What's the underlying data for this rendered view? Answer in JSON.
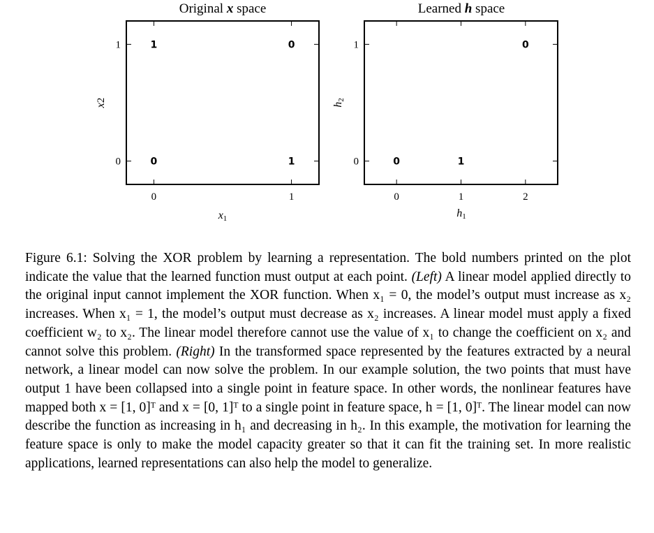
{
  "chart_data": [
    {
      "type": "scatter",
      "title": "Original x space",
      "title_pre": "Original ",
      "title_var": "x",
      "title_post": " space",
      "xlabel": "x1",
      "ylabel": "x2",
      "xlim": [
        -0.2,
        1.2
      ],
      "ylim": [
        -0.2,
        1.2
      ],
      "xticks": [
        0,
        1
      ],
      "yticks": [
        0,
        1
      ],
      "points": [
        {
          "x": 0,
          "y": 1,
          "label": "1"
        },
        {
          "x": 1,
          "y": 1,
          "label": "0"
        },
        {
          "x": 0,
          "y": 0,
          "label": "0"
        },
        {
          "x": 1,
          "y": 0,
          "label": "1"
        }
      ]
    },
    {
      "type": "scatter",
      "title": "Learned h space",
      "title_pre": "Learned ",
      "title_var": "h",
      "title_post": " space",
      "xlabel": "h1",
      "ylabel": "h2",
      "xlim": [
        -0.5,
        2.5
      ],
      "ylim": [
        -0.2,
        1.2
      ],
      "xticks": [
        0,
        1,
        2
      ],
      "yticks": [
        0,
        1
      ],
      "points": [
        {
          "x": 2,
          "y": 1,
          "label": "0"
        },
        {
          "x": 0,
          "y": 0,
          "label": "0"
        },
        {
          "x": 1,
          "y": 0,
          "label": "1"
        }
      ]
    }
  ],
  "caption": {
    "lead": "Figure 6.1: Solving the XOR problem by learning a representation. The bold numbers printed on the plot indicate the value that the learned function must output at each point. ",
    "left_tag": "(Left)",
    "after_left": " A linear model applied directly to the original input cannot implement the XOR function. When x₁ = 0, the model’s output must increase as x₂ increases. When x₁ = 1, the model’s output must decrease as x₂ increases. A linear model must apply a fixed coefficient w₂ to x₂. The linear model therefore cannot use the value of x₁ to change the coefficient on x₂ and cannot solve this problem. ",
    "right_tag": "(Right)",
    "after_right": " In the transformed space represented by the features extracted by a neural network, a linear model can now solve the problem. In our example solution, the two points that must have output 1 have been collapsed into a single point in feature space. In other words, the nonlinear features have mapped both x = [1, 0]ᵀ and x = [0, 1]ᵀ to a single point in feature space, h = [1, 0]ᵀ. The linear model can now describe the function as increasing in h₁ and decreasing in h₂. In this example, the motivation for learning the feature space is only to make the model capacity greater so that it can fit the training set. In more realistic applications, learned representations can also help the model to generalize."
  }
}
